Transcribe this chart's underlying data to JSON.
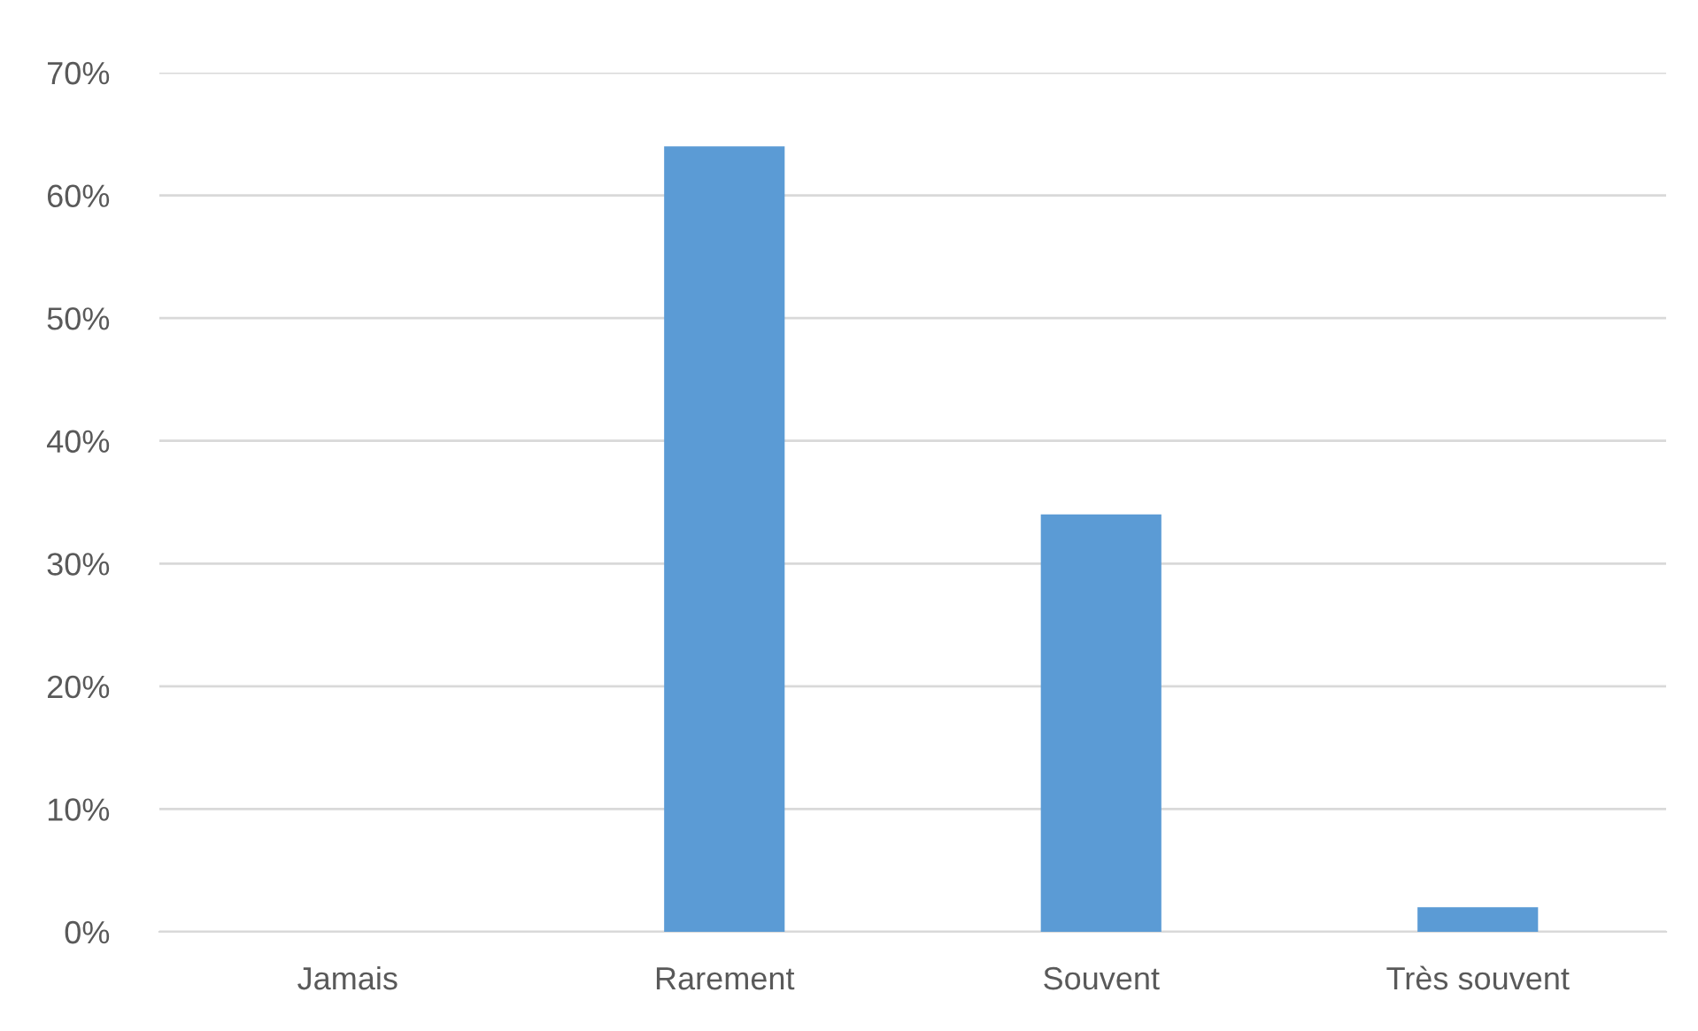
{
  "chart_data": {
    "type": "bar",
    "categories": [
      "Jamais",
      "Rarement",
      "Souvent",
      "Très souvent"
    ],
    "values": [
      0,
      64,
      34,
      2
    ],
    "color": "#5b9bd5",
    "ylim": [
      0,
      70
    ],
    "yticks": [
      {
        "value": 0,
        "label": "0%"
      },
      {
        "value": 10,
        "label": "10%"
      },
      {
        "value": 20,
        "label": "20%"
      },
      {
        "value": 30,
        "label": "30%"
      },
      {
        "value": 40,
        "label": "40%"
      },
      {
        "value": 50,
        "label": "50%"
      },
      {
        "value": 60,
        "label": "60%"
      },
      {
        "value": 70,
        "label": "70%"
      }
    ],
    "grid": "y"
  }
}
